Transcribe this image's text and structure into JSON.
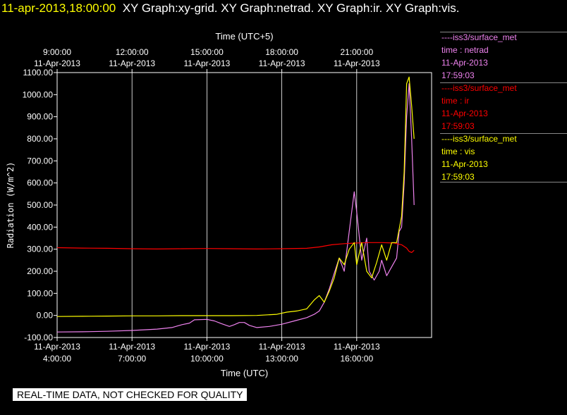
{
  "header": {
    "timestamp": "11-apr-2013,18:00:00",
    "graph_titles": "XY Graph:xy-grid.  XY Graph:netrad.  XY Graph:ir.  XY Graph:vis."
  },
  "legend": [
    {
      "line": "----iss3/surface_met",
      "field": "time : netrad",
      "date": "11-Apr-2013",
      "time": "17:59:03",
      "color": "#ee82ee"
    },
    {
      "line": "----iss3/surface_met",
      "field": "time : ir",
      "date": "11-Apr-2013",
      "time": "17:59:03",
      "color": "#ff0000"
    },
    {
      "line": "----iss3/surface_met",
      "field": "time : vis",
      "date": "11-Apr-2013",
      "time": "17:59:03",
      "color": "#ffff00"
    }
  ],
  "footer": {
    "note": "REAL-TIME DATA, NOT CHECKED FOR QUALITY"
  },
  "chart_data": {
    "type": "line",
    "xlabel": "Time (UTC)",
    "x2label": "Time (UTC+5)",
    "ylabel": "Radiation (W/m^2)",
    "xlim": [
      4.0,
      19.0
    ],
    "ylim": [
      -100,
      1100
    ],
    "grid": true,
    "yticks": [
      "-100.00",
      "0.00",
      "100.00",
      "200.00",
      "300.00",
      "400.00",
      "500.00",
      "600.00",
      "700.00",
      "800.00",
      "900.00",
      "1000.00",
      "1100.00"
    ],
    "xticks": [
      {
        "x": 4,
        "date": "11-Apr-2013",
        "time": "4:00:00"
      },
      {
        "x": 7,
        "date": "11-Apr-2013",
        "time": "7:00:00"
      },
      {
        "x": 10,
        "date": "11-Apr-2013",
        "time": "10:00:00"
      },
      {
        "x": 13,
        "date": "11-Apr-2013",
        "time": "13:00:00"
      },
      {
        "x": 16,
        "date": "11-Apr-2013",
        "time": "16:00:00"
      }
    ],
    "x2ticks": [
      {
        "x": 4,
        "date": "11-Apr-2013",
        "time": "9:00:00"
      },
      {
        "x": 7,
        "date": "11-Apr-2013",
        "time": "12:00:00"
      },
      {
        "x": 10,
        "date": "11-Apr-2013",
        "time": "15:00:00"
      },
      {
        "x": 13,
        "date": "11-Apr-2013",
        "time": "18:00:00"
      },
      {
        "x": 16,
        "date": "11-Apr-2013",
        "time": "21:00:00"
      }
    ],
    "series": [
      {
        "name": "netrad",
        "color": "#ee82ee",
        "points": [
          [
            4.0,
            -75
          ],
          [
            5.0,
            -74
          ],
          [
            6.0,
            -72
          ],
          [
            7.0,
            -68
          ],
          [
            8.0,
            -62
          ],
          [
            8.6,
            -55
          ],
          [
            9.0,
            -42
          ],
          [
            9.3,
            -35
          ],
          [
            9.5,
            -20
          ],
          [
            10.0,
            -18
          ],
          [
            10.3,
            -25
          ],
          [
            10.6,
            -38
          ],
          [
            10.9,
            -50
          ],
          [
            11.1,
            -42
          ],
          [
            11.3,
            -32
          ],
          [
            11.5,
            -32
          ],
          [
            11.7,
            -45
          ],
          [
            12.0,
            -55
          ],
          [
            12.5,
            -50
          ],
          [
            13.0,
            -40
          ],
          [
            13.5,
            -25
          ],
          [
            14.0,
            -10
          ],
          [
            14.3,
            5
          ],
          [
            14.5,
            20
          ],
          [
            14.7,
            60
          ],
          [
            14.9,
            120
          ],
          [
            15.1,
            190
          ],
          [
            15.3,
            260
          ],
          [
            15.5,
            200
          ],
          [
            15.7,
            380
          ],
          [
            15.9,
            560
          ],
          [
            16.0,
            470
          ],
          [
            16.2,
            250
          ],
          [
            16.4,
            350
          ],
          [
            16.5,
            200
          ],
          [
            16.7,
            160
          ],
          [
            16.9,
            200
          ],
          [
            17.0,
            250
          ],
          [
            17.2,
            180
          ],
          [
            17.4,
            220
          ],
          [
            17.6,
            260
          ],
          [
            17.7,
            380
          ],
          [
            17.8,
            400
          ],
          [
            17.9,
            600
          ],
          [
            18.0,
            900
          ],
          [
            18.1,
            1050
          ],
          [
            18.2,
            800
          ],
          [
            18.3,
            500
          ]
        ]
      },
      {
        "name": "ir",
        "color": "#ff0000",
        "points": [
          [
            4.0,
            307
          ],
          [
            5.0,
            305
          ],
          [
            6.0,
            304
          ],
          [
            7.0,
            302
          ],
          [
            8.0,
            301
          ],
          [
            9.0,
            302
          ],
          [
            10.0,
            303
          ],
          [
            11.0,
            302
          ],
          [
            12.0,
            301
          ],
          [
            13.0,
            302
          ],
          [
            14.0,
            304
          ],
          [
            14.5,
            310
          ],
          [
            15.0,
            320
          ],
          [
            15.5,
            325
          ],
          [
            16.0,
            328
          ],
          [
            16.5,
            330
          ],
          [
            17.0,
            330
          ],
          [
            17.5,
            328
          ],
          [
            17.8,
            320
          ],
          [
            18.0,
            305
          ],
          [
            18.1,
            290
          ],
          [
            18.2,
            285
          ],
          [
            18.3,
            295
          ]
        ]
      },
      {
        "name": "vis",
        "color": "#ffff00",
        "points": [
          [
            4.0,
            -5
          ],
          [
            5.0,
            -4
          ],
          [
            6.0,
            -3
          ],
          [
            7.0,
            -2
          ],
          [
            8.0,
            -2
          ],
          [
            9.0,
            -1
          ],
          [
            10.0,
            -1
          ],
          [
            11.0,
            -1
          ],
          [
            12.0,
            0
          ],
          [
            12.8,
            5
          ],
          [
            13.2,
            15
          ],
          [
            13.6,
            20
          ],
          [
            14.0,
            30
          ],
          [
            14.3,
            70
          ],
          [
            14.5,
            90
          ],
          [
            14.7,
            60
          ],
          [
            14.9,
            110
          ],
          [
            15.1,
            170
          ],
          [
            15.3,
            260
          ],
          [
            15.5,
            230
          ],
          [
            15.7,
            300
          ],
          [
            15.9,
            330
          ],
          [
            16.0,
            230
          ],
          [
            16.2,
            330
          ],
          [
            16.4,
            200
          ],
          [
            16.6,
            170
          ],
          [
            16.8,
            240
          ],
          [
            17.0,
            320
          ],
          [
            17.2,
            250
          ],
          [
            17.4,
            330
          ],
          [
            17.6,
            330
          ],
          [
            17.8,
            450
          ],
          [
            17.9,
            650
          ],
          [
            18.0,
            1050
          ],
          [
            18.1,
            1080
          ],
          [
            18.2,
            950
          ],
          [
            18.3,
            800
          ]
        ]
      }
    ]
  }
}
